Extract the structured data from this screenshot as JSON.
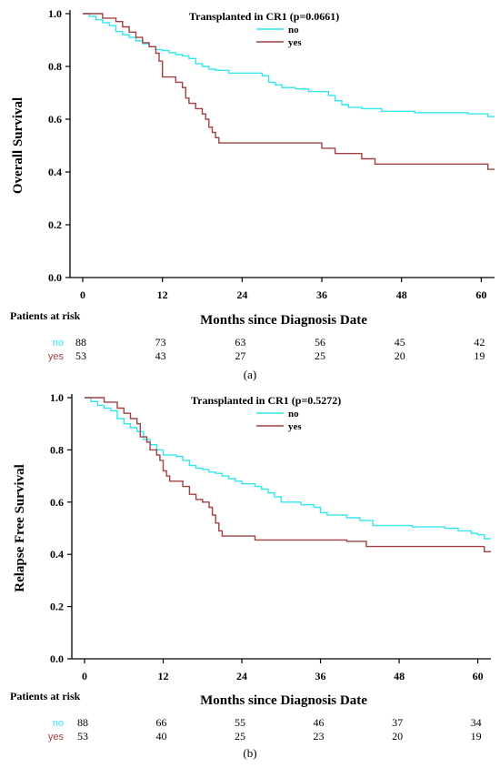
{
  "chart_data": [
    {
      "type": "line",
      "panel_label": "(a)",
      "legend_title": "Transplanted in CR1  (p=0.0661)",
      "ylabel": "Overall Survival",
      "xlabel": "Months since Diagnosis Date",
      "xlim": [
        0,
        62
      ],
      "ylim": [
        0,
        1
      ],
      "xticks": [
        "0",
        "12",
        "24",
        "36",
        "48",
        "60"
      ],
      "yticks": [
        "0.0",
        "0.2",
        "0.4",
        "0.6",
        "0.8",
        "1.0"
      ],
      "risk_table": {
        "title": "Patients at risk",
        "rows": [
          {
            "label": "no",
            "values": [
              "88",
              "73",
              "63",
              "56",
              "45",
              "42"
            ]
          },
          {
            "label": "yes",
            "values": [
              "53",
              "43",
              "27",
              "25",
              "20",
              "19"
            ]
          }
        ]
      },
      "series": [
        {
          "name": "no",
          "color": "#33e6f0",
          "points": [
            [
              0,
              1.0
            ],
            [
              1,
              0.99
            ],
            [
              2,
              0.977
            ],
            [
              3,
              0.966
            ],
            [
              4,
              0.955
            ],
            [
              5,
              0.932
            ],
            [
              6,
              0.92
            ],
            [
              7,
              0.91
            ],
            [
              8,
              0.897
            ],
            [
              9,
              0.886
            ],
            [
              10,
              0.875
            ],
            [
              11,
              0.864
            ],
            [
              12,
              0.86
            ],
            [
              13,
              0.852
            ],
            [
              14,
              0.845
            ],
            [
              15,
              0.84
            ],
            [
              16,
              0.83
            ],
            [
              17,
              0.81
            ],
            [
              18,
              0.8
            ],
            [
              19,
              0.79
            ],
            [
              20,
              0.785
            ],
            [
              22,
              0.775
            ],
            [
              24,
              0.775
            ],
            [
              27,
              0.765
            ],
            [
              28,
              0.74
            ],
            [
              29,
              0.73
            ],
            [
              30,
              0.72
            ],
            [
              32,
              0.715
            ],
            [
              34,
              0.705
            ],
            [
              36,
              0.705
            ],
            [
              37,
              0.69
            ],
            [
              38,
              0.67
            ],
            [
              39,
              0.655
            ],
            [
              40,
              0.645
            ],
            [
              42,
              0.64
            ],
            [
              45,
              0.63
            ],
            [
              50,
              0.625
            ],
            [
              55,
              0.625
            ],
            [
              58,
              0.62
            ],
            [
              61,
              0.61
            ],
            [
              62,
              0.61
            ]
          ]
        },
        {
          "name": "yes",
          "color": "#a04040",
          "points": [
            [
              0,
              1.0
            ],
            [
              3,
              0.983
            ],
            [
              5,
              0.97
            ],
            [
              6,
              0.95
            ],
            [
              7,
              0.93
            ],
            [
              8,
              0.91
            ],
            [
              9,
              0.89
            ],
            [
              10,
              0.875
            ],
            [
              11,
              0.85
            ],
            [
              11.5,
              0.82
            ],
            [
              12,
              0.76
            ],
            [
              14,
              0.74
            ],
            [
              15,
              0.72
            ],
            [
              15.5,
              0.68
            ],
            [
              16,
              0.66
            ],
            [
              17,
              0.64
            ],
            [
              18,
              0.62
            ],
            [
              18.5,
              0.6
            ],
            [
              19,
              0.57
            ],
            [
              19.5,
              0.55
            ],
            [
              20,
              0.53
            ],
            [
              20.5,
              0.51
            ],
            [
              24,
              0.51
            ],
            [
              30,
              0.51
            ],
            [
              36,
              0.49
            ],
            [
              38,
              0.47
            ],
            [
              42,
              0.45
            ],
            [
              44,
              0.43
            ],
            [
              48,
              0.43
            ],
            [
              55,
              0.43
            ],
            [
              61,
              0.41
            ],
            [
              62,
              0.41
            ]
          ]
        }
      ]
    },
    {
      "type": "line",
      "panel_label": "(b)",
      "legend_title": "Transplanted in CR1  (p=0.5272)",
      "ylabel": "Relapse Free Survival",
      "xlabel": "Months since Diagnosis Date",
      "xlim": [
        0,
        62
      ],
      "ylim": [
        0,
        1
      ],
      "xticks": [
        "0",
        "12",
        "24",
        "36",
        "48",
        "60"
      ],
      "yticks": [
        "0.0",
        "0.2",
        "0.4",
        "0.6",
        "0.8",
        "1.0"
      ],
      "risk_table": {
        "title": "Patients at risk",
        "rows": [
          {
            "label": "no",
            "values": [
              "88",
              "66",
              "55",
              "46",
              "37",
              "34"
            ]
          },
          {
            "label": "yes",
            "values": [
              "53",
              "40",
              "25",
              "23",
              "20",
              "19"
            ]
          }
        ]
      },
      "series": [
        {
          "name": "no",
          "color": "#33e6f0",
          "points": [
            [
              0,
              1.0
            ],
            [
              1,
              0.985
            ],
            [
              2,
              0.97
            ],
            [
              3,
              0.96
            ],
            [
              4,
              0.95
            ],
            [
              5,
              0.92
            ],
            [
              6,
              0.9
            ],
            [
              7,
              0.885
            ],
            [
              8,
              0.87
            ],
            [
              9,
              0.84
            ],
            [
              10,
              0.82
            ],
            [
              11,
              0.8
            ],
            [
              12,
              0.78
            ],
            [
              14,
              0.775
            ],
            [
              15,
              0.76
            ],
            [
              16,
              0.74
            ],
            [
              17,
              0.73
            ],
            [
              18,
              0.725
            ],
            [
              19,
              0.715
            ],
            [
              20,
              0.71
            ],
            [
              21,
              0.7
            ],
            [
              22,
              0.69
            ],
            [
              23,
              0.68
            ],
            [
              24,
              0.67
            ],
            [
              26,
              0.66
            ],
            [
              27,
              0.65
            ],
            [
              28,
              0.635
            ],
            [
              29,
              0.62
            ],
            [
              30,
              0.6
            ],
            [
              33,
              0.59
            ],
            [
              35,
              0.58
            ],
            [
              36,
              0.56
            ],
            [
              37,
              0.55
            ],
            [
              40,
              0.54
            ],
            [
              42,
              0.53
            ],
            [
              44,
              0.51
            ],
            [
              47,
              0.51
            ],
            [
              50,
              0.505
            ],
            [
              55,
              0.5
            ],
            [
              57,
              0.49
            ],
            [
              59,
              0.48
            ],
            [
              60,
              0.475
            ],
            [
              61,
              0.46
            ],
            [
              62,
              0.46
            ]
          ]
        },
        {
          "name": "yes",
          "color": "#a04040",
          "points": [
            [
              0,
              1.0
            ],
            [
              3,
              0.983
            ],
            [
              5,
              0.96
            ],
            [
              6,
              0.94
            ],
            [
              7,
              0.92
            ],
            [
              8,
              0.9
            ],
            [
              8.5,
              0.85
            ],
            [
              9.5,
              0.83
            ],
            [
              10,
              0.8
            ],
            [
              11,
              0.78
            ],
            [
              11.5,
              0.76
            ],
            [
              12,
              0.72
            ],
            [
              12.5,
              0.7
            ],
            [
              13,
              0.68
            ],
            [
              15,
              0.66
            ],
            [
              16,
              0.63
            ],
            [
              17,
              0.61
            ],
            [
              18,
              0.6
            ],
            [
              19,
              0.58
            ],
            [
              19.5,
              0.55
            ],
            [
              20,
              0.52
            ],
            [
              20.5,
              0.49
            ],
            [
              21,
              0.47
            ],
            [
              24,
              0.47
            ],
            [
              26,
              0.455
            ],
            [
              36,
              0.455
            ],
            [
              40,
              0.45
            ],
            [
              43,
              0.43
            ],
            [
              48,
              0.43
            ],
            [
              55,
              0.43
            ],
            [
              61,
              0.41
            ],
            [
              62,
              0.41
            ]
          ]
        }
      ]
    }
  ]
}
